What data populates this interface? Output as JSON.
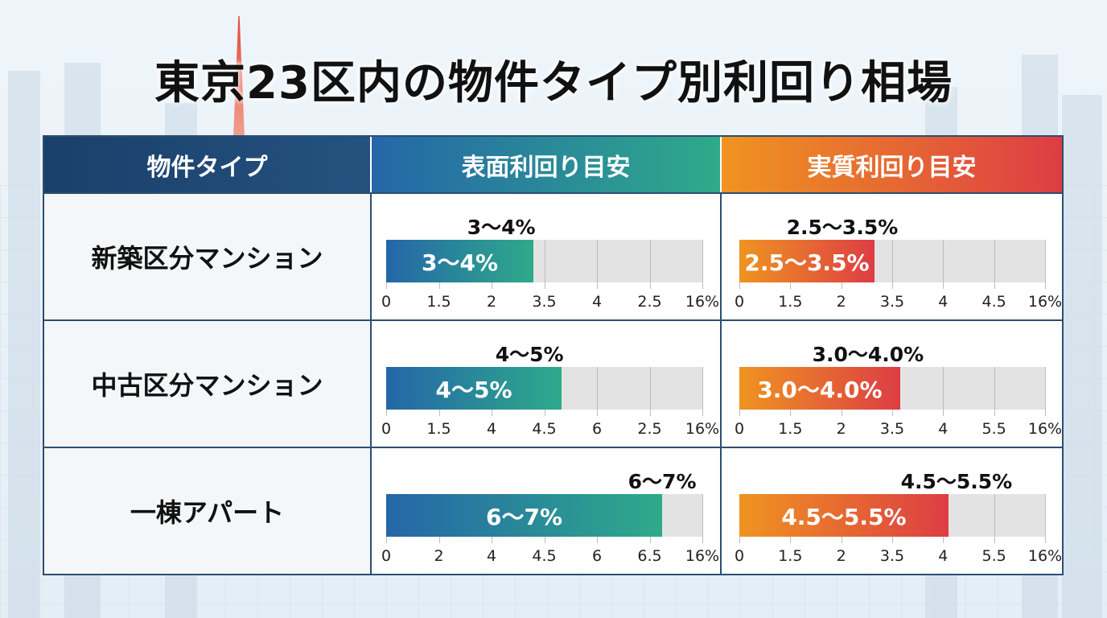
{
  "title": "東京23区内の物件タイプ別利回り相場",
  "headers": [
    "物件タイプ",
    "表面利回り目安",
    "実質利回り目安"
  ],
  "colors": {
    "surface_start": "#2566a8",
    "surface_end": "#2eaa8a",
    "real_start": "#ef9420",
    "real_end": "#dd3d44",
    "header_dark": "#1b3f6b",
    "track": "#e3e3e3"
  },
  "chart_data": [
    {
      "type": "bar",
      "title": "表面利回り目安",
      "categories": [
        "新築区分マンション",
        "中古区分マンション",
        "一棟アパート"
      ],
      "rows": [
        {
          "label": "3〜4%",
          "fill_fraction": 0.466,
          "ticks": [
            "0",
            "1.5",
            "2",
            "3.5",
            "4",
            "2.5",
            "16%"
          ]
        },
        {
          "label": "4〜5%",
          "fill_fraction": 0.555,
          "ticks": [
            "0",
            "1.5",
            "4",
            "4.5",
            "6",
            "2.5",
            "16%"
          ]
        },
        {
          "label": "6〜7%",
          "fill_fraction": 0.873,
          "ticks": [
            "0",
            "2",
            "4",
            "4.5",
            "6",
            "6.5",
            "16%"
          ]
        }
      ]
    },
    {
      "type": "bar",
      "title": "実質利回り目安",
      "categories": [
        "新築区分マンション",
        "中古区分マンション",
        "一棟アパート"
      ],
      "rows": [
        {
          "label": "2.5〜3.5%",
          "fill_fraction": 0.442,
          "ticks": [
            "0",
            "1.5",
            "2",
            "3.5",
            "4",
            "4.5",
            "16%"
          ]
        },
        {
          "label": "3.0〜4.0%",
          "fill_fraction": 0.526,
          "ticks": [
            "0",
            "1.5",
            "2",
            "3.5",
            "4",
            "5.5",
            "16%"
          ]
        },
        {
          "label": "4.5〜5.5%",
          "fill_fraction": 0.684,
          "ticks": [
            "0",
            "1.5",
            "2",
            "3.5",
            "4",
            "5.5",
            "16%"
          ]
        }
      ]
    }
  ]
}
